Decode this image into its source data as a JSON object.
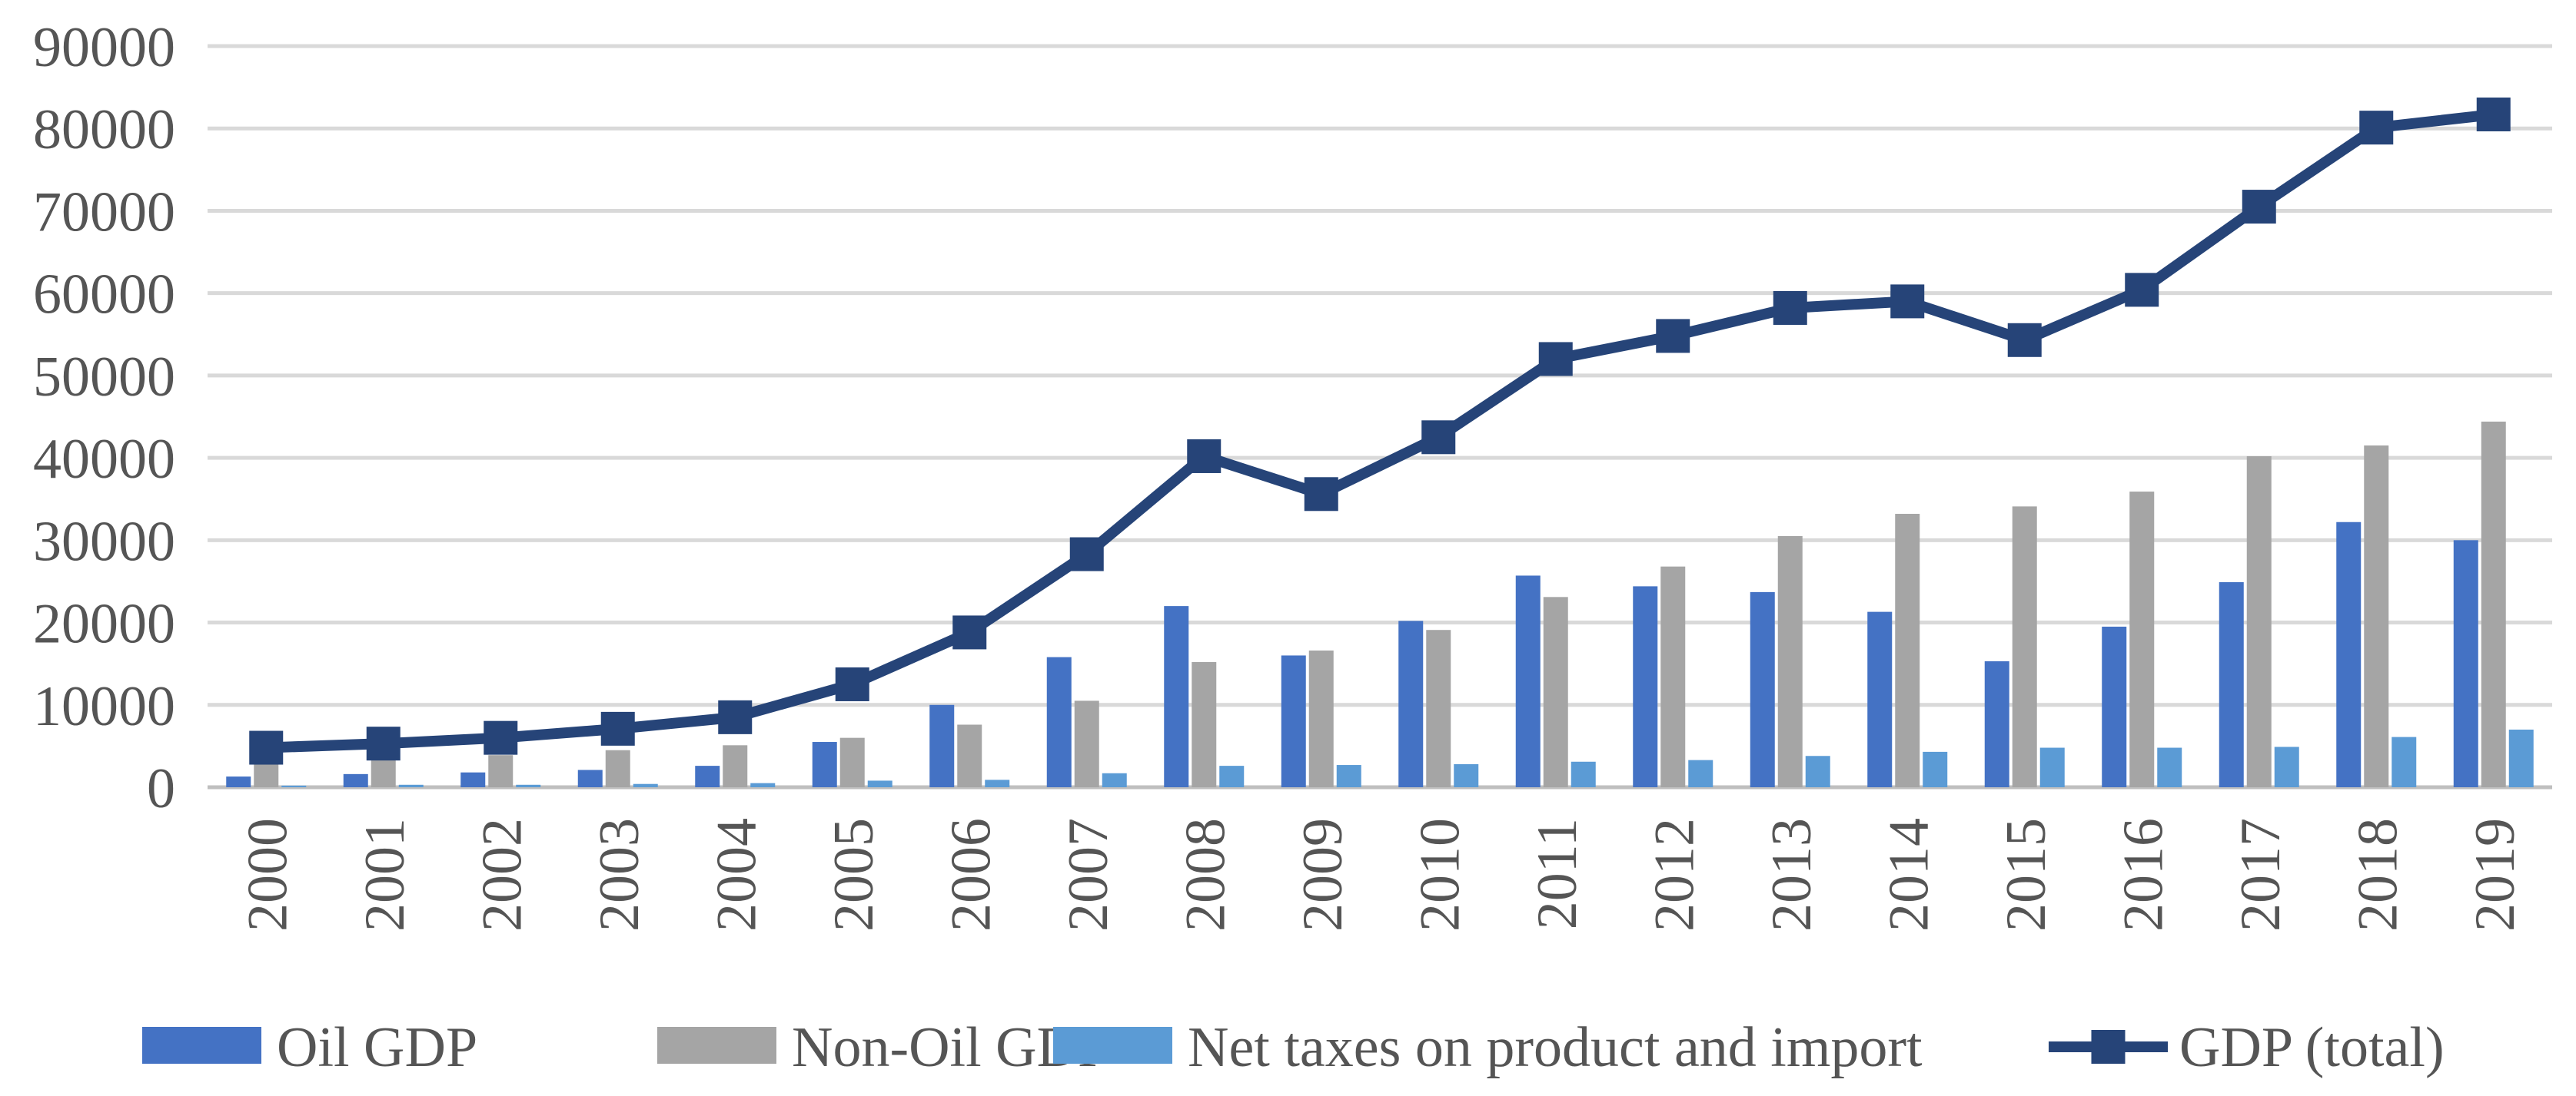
{
  "chart_data": {
    "type": "bar",
    "title": "",
    "xlabel": "",
    "ylabel": "",
    "ylim": [
      0,
      90000
    ],
    "yticks": [
      0,
      10000,
      20000,
      30000,
      40000,
      50000,
      60000,
      70000,
      80000,
      90000
    ],
    "grid": true,
    "legend_position": "bottom",
    "categories": [
      "2000",
      "2001",
      "2002",
      "2003",
      "2004",
      "2005",
      "2006",
      "2007",
      "2008",
      "2009",
      "2010",
      "2011",
      "2012",
      "2013",
      "2014",
      "2015",
      "2016",
      "2017",
      "2018",
      "2019"
    ],
    "series": [
      {
        "name": "Oil GDP",
        "kind": "bar",
        "color": "#4472C4",
        "values": [
          1300,
          1600,
          1800,
          2100,
          2600,
          5500,
          10000,
          15800,
          22000,
          16000,
          20200,
          25700,
          24400,
          23700,
          21300,
          15300,
          19500,
          24900,
          32200,
          30000
        ]
      },
      {
        "name": "Non-Oil GDP",
        "kind": "bar",
        "color": "#A5A5A5",
        "values": [
          3000,
          3400,
          3900,
          4500,
          5100,
          6000,
          7600,
          10500,
          15200,
          16600,
          19100,
          23100,
          26800,
          30500,
          33200,
          34100,
          35900,
          40200,
          41500,
          44400
        ]
      },
      {
        "name": "Net taxes on product and import",
        "kind": "bar",
        "color": "#5B9BD5",
        "values": [
          200,
          300,
          300,
          400,
          500,
          800,
          900,
          1700,
          2600,
          2700,
          2800,
          3100,
          3300,
          3800,
          4300,
          4800,
          4800,
          4900,
          6100,
          7000
        ]
      },
      {
        "name": "GDP (total)",
        "kind": "line",
        "color": "#264478",
        "values": [
          4800,
          5300,
          6000,
          7100,
          8500,
          12500,
          18800,
          28300,
          40200,
          35600,
          42500,
          52000,
          54800,
          58200,
          59000,
          54300,
          60400,
          70500,
          80100,
          81700
        ]
      }
    ]
  }
}
